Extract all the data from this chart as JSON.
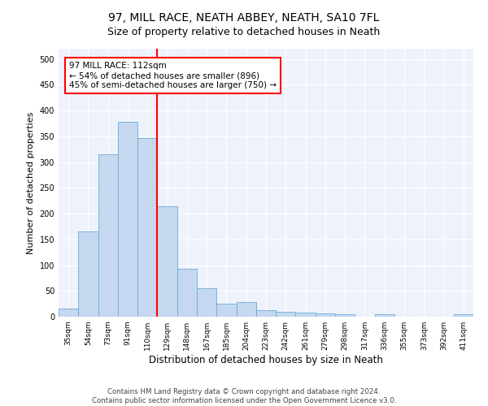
{
  "title": "97, MILL RACE, NEATH ABBEY, NEATH, SA10 7FL",
  "subtitle": "Size of property relative to detached houses in Neath",
  "xlabel": "Distribution of detached houses by size in Neath",
  "ylabel": "Number of detached properties",
  "categories": [
    "35sqm",
    "54sqm",
    "73sqm",
    "91sqm",
    "110sqm",
    "129sqm",
    "148sqm",
    "167sqm",
    "185sqm",
    "204sqm",
    "223sqm",
    "242sqm",
    "261sqm",
    "279sqm",
    "298sqm",
    "317sqm",
    "336sqm",
    "355sqm",
    "373sqm",
    "392sqm",
    "411sqm"
  ],
  "values": [
    15,
    165,
    315,
    378,
    347,
    215,
    93,
    55,
    25,
    28,
    13,
    10,
    8,
    6,
    4,
    0,
    4,
    0,
    0,
    0,
    4
  ],
  "bar_color": "#c5d8f0",
  "bar_edge_color": "#6aaad4",
  "red_line_x": 4.5,
  "annotation_line1": "97 MILL RACE: 112sqm",
  "annotation_line2": "← 54% of detached houses are smaller (896)",
  "annotation_line3": "45% of semi-detached houses are larger (750) →",
  "ylim": [
    0,
    520
  ],
  "yticks": [
    0,
    50,
    100,
    150,
    200,
    250,
    300,
    350,
    400,
    450,
    500
  ],
  "footer_line1": "Contains HM Land Registry data © Crown copyright and database right 2024.",
  "footer_line2": "Contains public sector information licensed under the Open Government Licence v3.0.",
  "bg_color": "#eef2fb",
  "title_fontsize": 10,
  "subtitle_fontsize": 9,
  "tick_fontsize": 6.5,
  "ylabel_fontsize": 8,
  "xlabel_fontsize": 8.5,
  "annotation_fontsize": 7.5,
  "footer_fontsize": 6.2
}
